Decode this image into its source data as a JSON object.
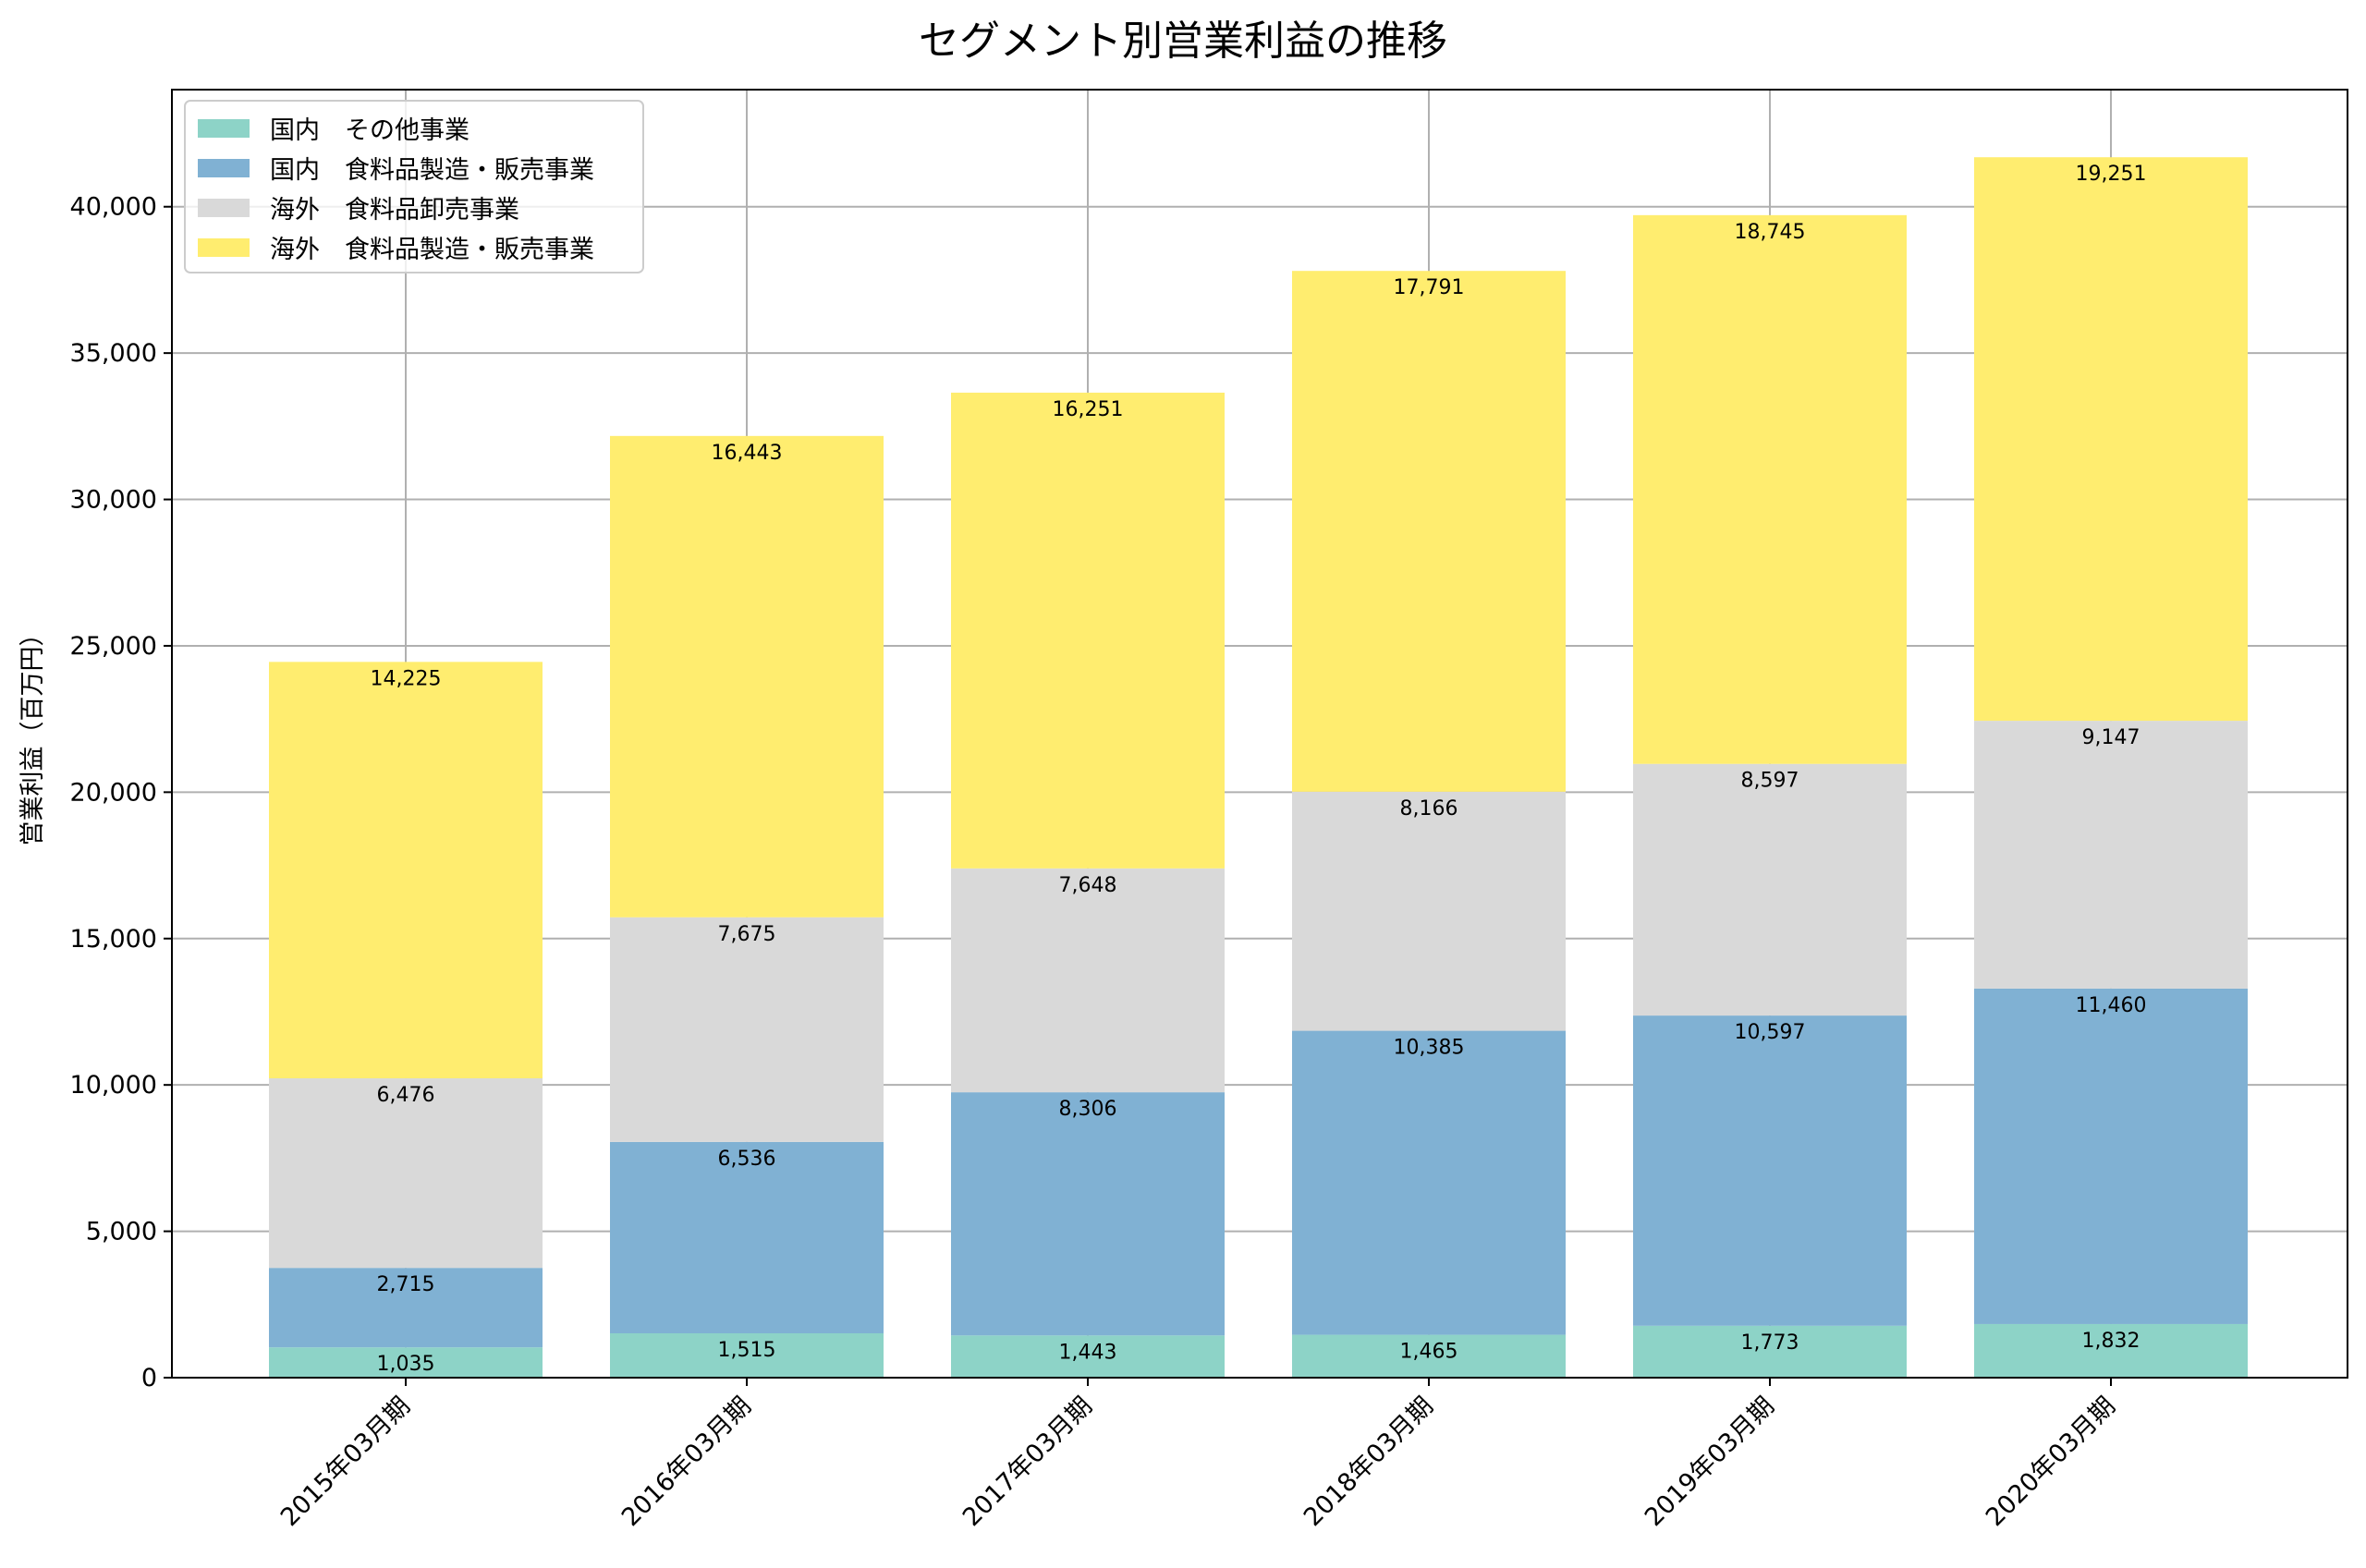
{
  "chart_data": {
    "type": "bar",
    "stacked": true,
    "title": "セグメント別営業利益の推移",
    "xlabel": "",
    "ylabel": "営業利益（百万円）",
    "ylim": [
      0,
      44000
    ],
    "yticks": [
      0,
      5000,
      10000,
      15000,
      20000,
      25000,
      30000,
      35000,
      40000
    ],
    "ytick_labels": [
      "0",
      "5,000",
      "10,000",
      "15,000",
      "20,000",
      "25,000",
      "30,000",
      "35,000",
      "40,000"
    ],
    "grid": true,
    "legend_position": "top-left",
    "categories": [
      "2015年03月期",
      "2016年03月期",
      "2017年03月期",
      "2018年03月期",
      "2019年03月期",
      "2020年03月期"
    ],
    "series": [
      {
        "name": "国内　その他事業",
        "color": "#8dd3c7",
        "values": [
          1035,
          1515,
          1443,
          1465,
          1773,
          1832
        ],
        "labels": [
          "1,035",
          "1,515",
          "1,443",
          "1,465",
          "1,773",
          "1,832"
        ]
      },
      {
        "name": "国内　食料品製造・販売事業",
        "color": "#80b1d3",
        "values": [
          2715,
          6536,
          8306,
          10385,
          10597,
          11460
        ],
        "labels": [
          "2,715",
          "6,536",
          "8,306",
          "10,385",
          "10,597",
          "11,460"
        ]
      },
      {
        "name": "海外　食料品卸売事業",
        "color": "#d9d9d9",
        "values": [
          6476,
          7675,
          7648,
          8166,
          8597,
          9147
        ],
        "labels": [
          "6,476",
          "7,675",
          "7,648",
          "8,166",
          "8,597",
          "9,147"
        ]
      },
      {
        "name": "海外　食料品製造・販売事業",
        "color": "#ffed6f",
        "values": [
          14225,
          16443,
          16251,
          17791,
          18745,
          19251
        ],
        "labels": [
          "14,225",
          "16,443",
          "16,251",
          "17,791",
          "18,745",
          "19,251"
        ]
      }
    ]
  }
}
